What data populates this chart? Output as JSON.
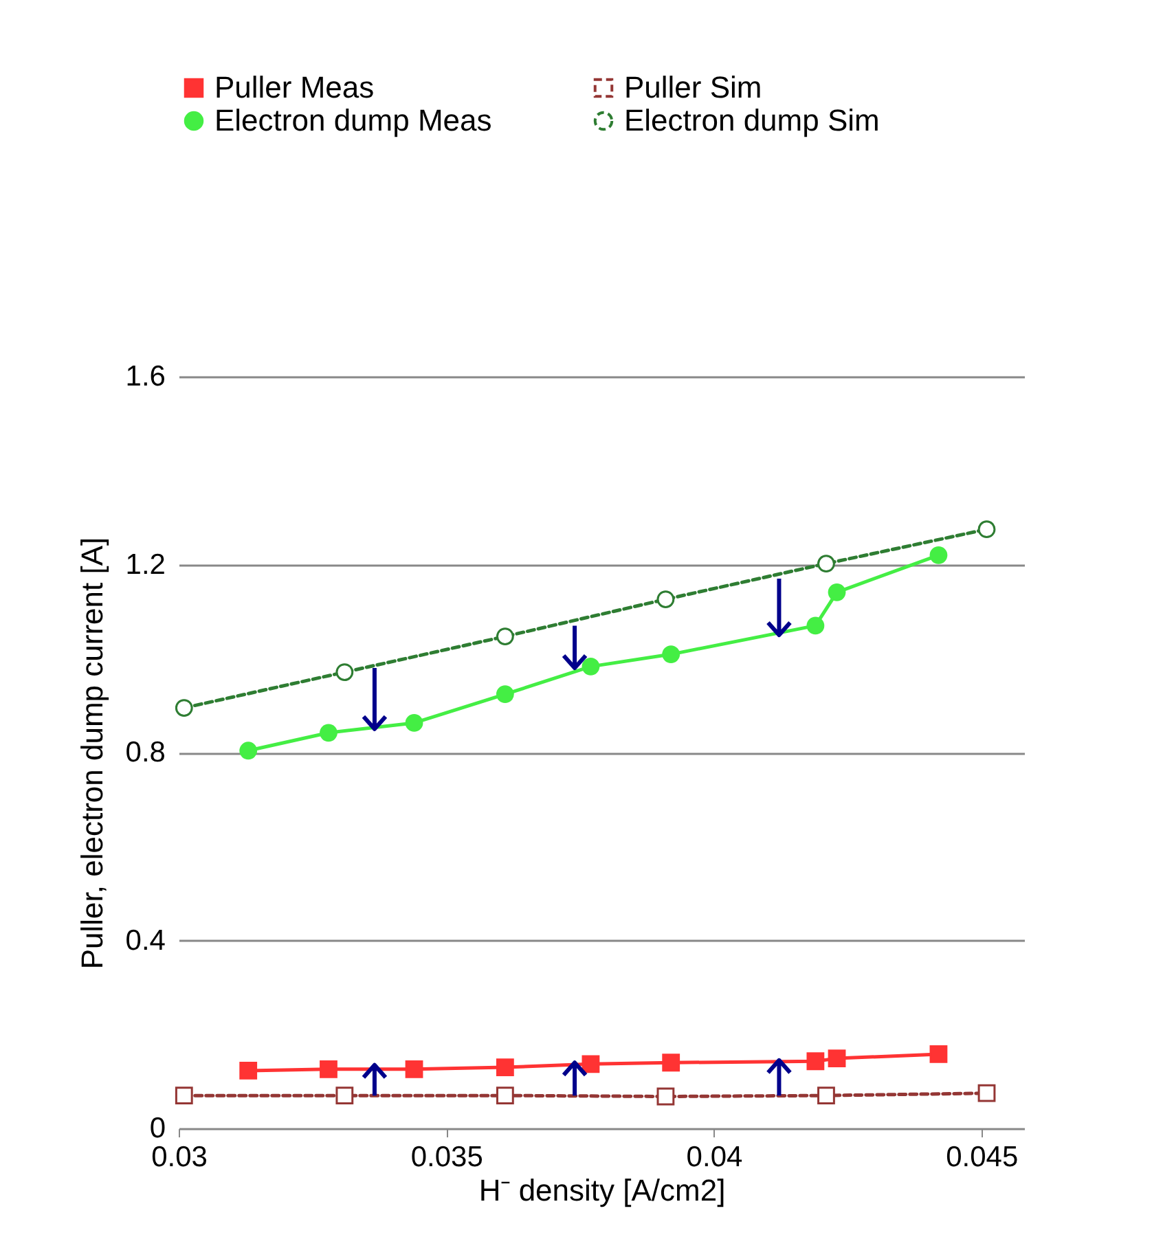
{
  "chart_data": {
    "type": "line",
    "xlabel": "H⁻ density [A/cm2]",
    "ylabel": "Puller, electron dump current [A]",
    "xlim": [
      0.03,
      0.0458
    ],
    "xticks": [
      0.03,
      0.035,
      0.04,
      0.045
    ],
    "ylim": [
      0,
      1.6
    ],
    "yticks": [
      0,
      0.4,
      0.8,
      1.2,
      1.6
    ],
    "grid": "y",
    "legend": "top",
    "series": [
      {
        "name": "Puller Meas",
        "color": "#ff3333",
        "marker": "square",
        "line_style": "solid",
        "x": [
          0.0313,
          0.0328,
          0.0344,
          0.0361,
          0.0377,
          0.0392,
          0.0419,
          0.0423,
          0.0442
        ],
        "values": [
          0.123,
          0.126,
          0.126,
          0.13,
          0.137,
          0.14,
          0.143,
          0.149,
          0.158
        ]
      },
      {
        "name": "Puller Sim",
        "color": "#943634",
        "marker": "square",
        "line_style": "dashed",
        "x": [
          0.0301,
          0.0331,
          0.0361,
          0.0391,
          0.0421,
          0.0451
        ],
        "values": [
          0.07,
          0.07,
          0.07,
          0.068,
          0.07,
          0.075
        ]
      },
      {
        "name": "Electron dump Meas",
        "color": "#44ee44",
        "marker": "circle",
        "line_style": "solid",
        "x": [
          0.0313,
          0.0328,
          0.0344,
          0.0361,
          0.0377,
          0.0392,
          0.0419,
          0.0423,
          0.0442
        ],
        "values": [
          0.804,
          0.842,
          0.863,
          0.924,
          0.983,
          1.009,
          1.07,
          1.141,
          1.22
        ]
      },
      {
        "name": "Electron dump Sim",
        "color": "#2e7d32",
        "marker": "circle",
        "line_style": "dashed",
        "x": [
          0.0301,
          0.0331,
          0.0361,
          0.0391,
          0.0421,
          0.0451
        ],
        "values": [
          0.895,
          0.971,
          1.047,
          1.126,
          1.202,
          1.275
        ]
      }
    ]
  }
}
